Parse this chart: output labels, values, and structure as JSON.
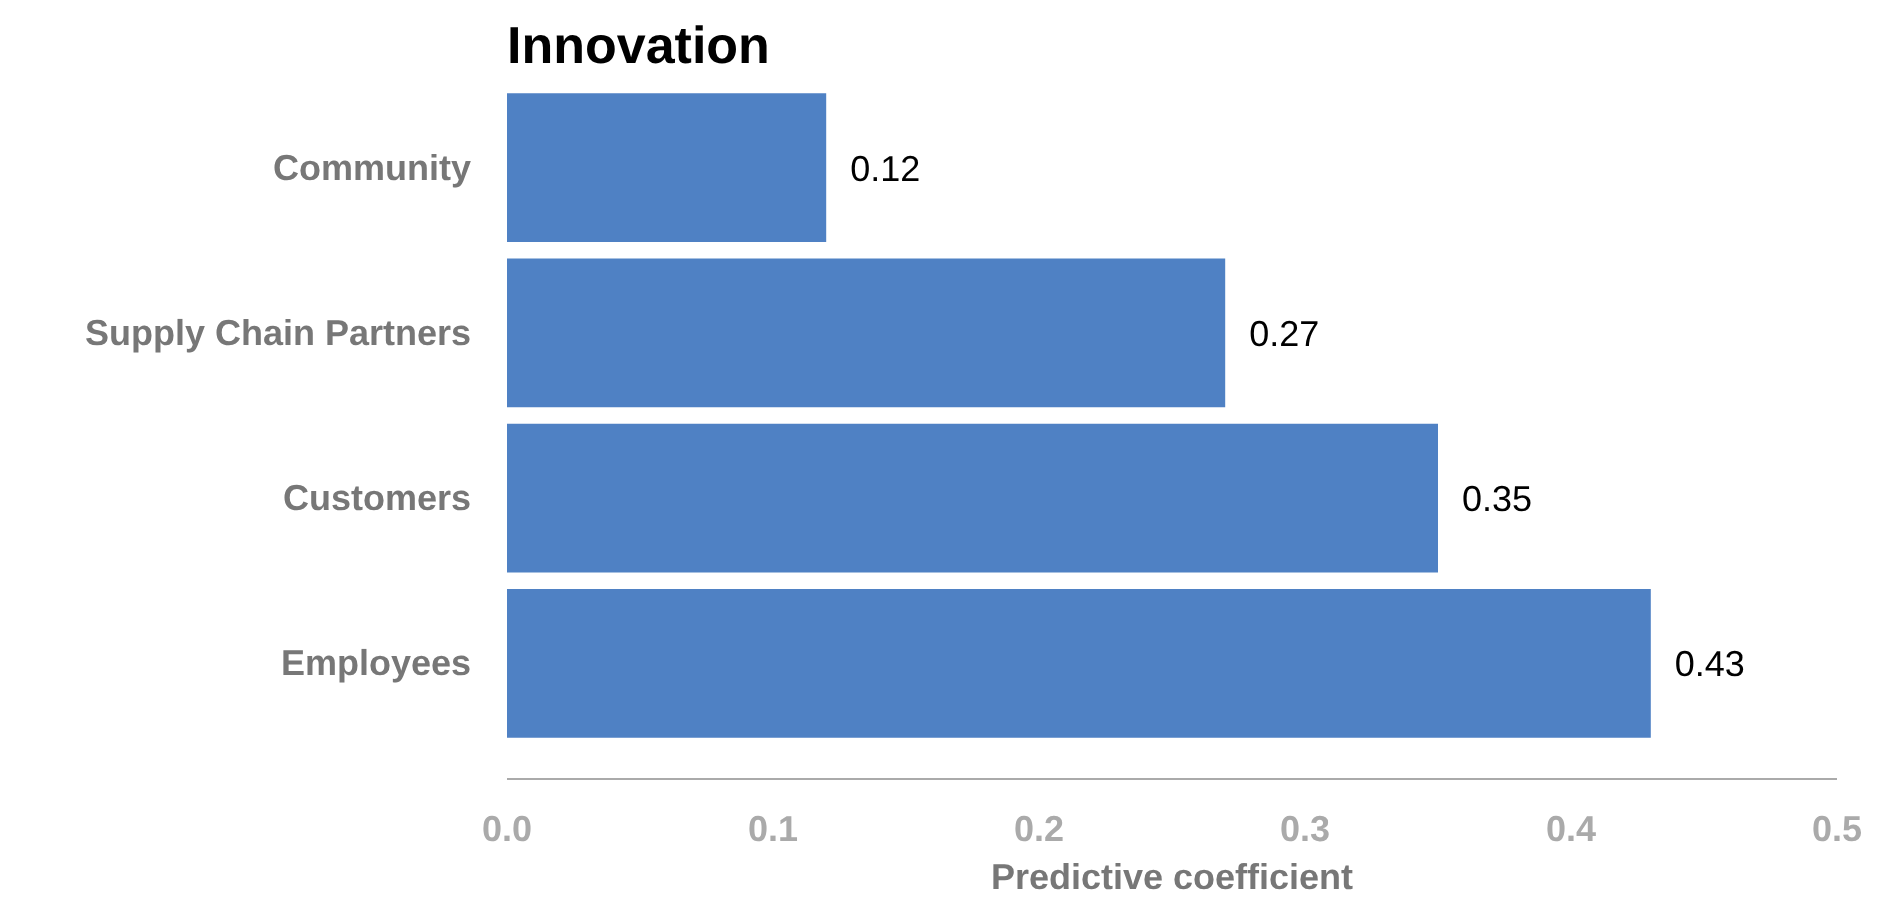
{
  "chart_data": {
    "type": "bar",
    "orientation": "horizontal",
    "title": "Innovation",
    "xlabel": "Predictive coefficient",
    "categories": [
      "Community",
      "Supply Chain Partners",
      "Customers",
      "Employees"
    ],
    "values": [
      0.12,
      0.27,
      0.35,
      0.43
    ],
    "color": "#4f81c4",
    "xlim": [
      0,
      0.5
    ],
    "xticks": [
      {
        "value": 0,
        "label": "0.0"
      },
      0.1,
      0.2,
      0.3,
      0.4,
      0.5
    ],
    "data_labels": true,
    "grid": false
  }
}
